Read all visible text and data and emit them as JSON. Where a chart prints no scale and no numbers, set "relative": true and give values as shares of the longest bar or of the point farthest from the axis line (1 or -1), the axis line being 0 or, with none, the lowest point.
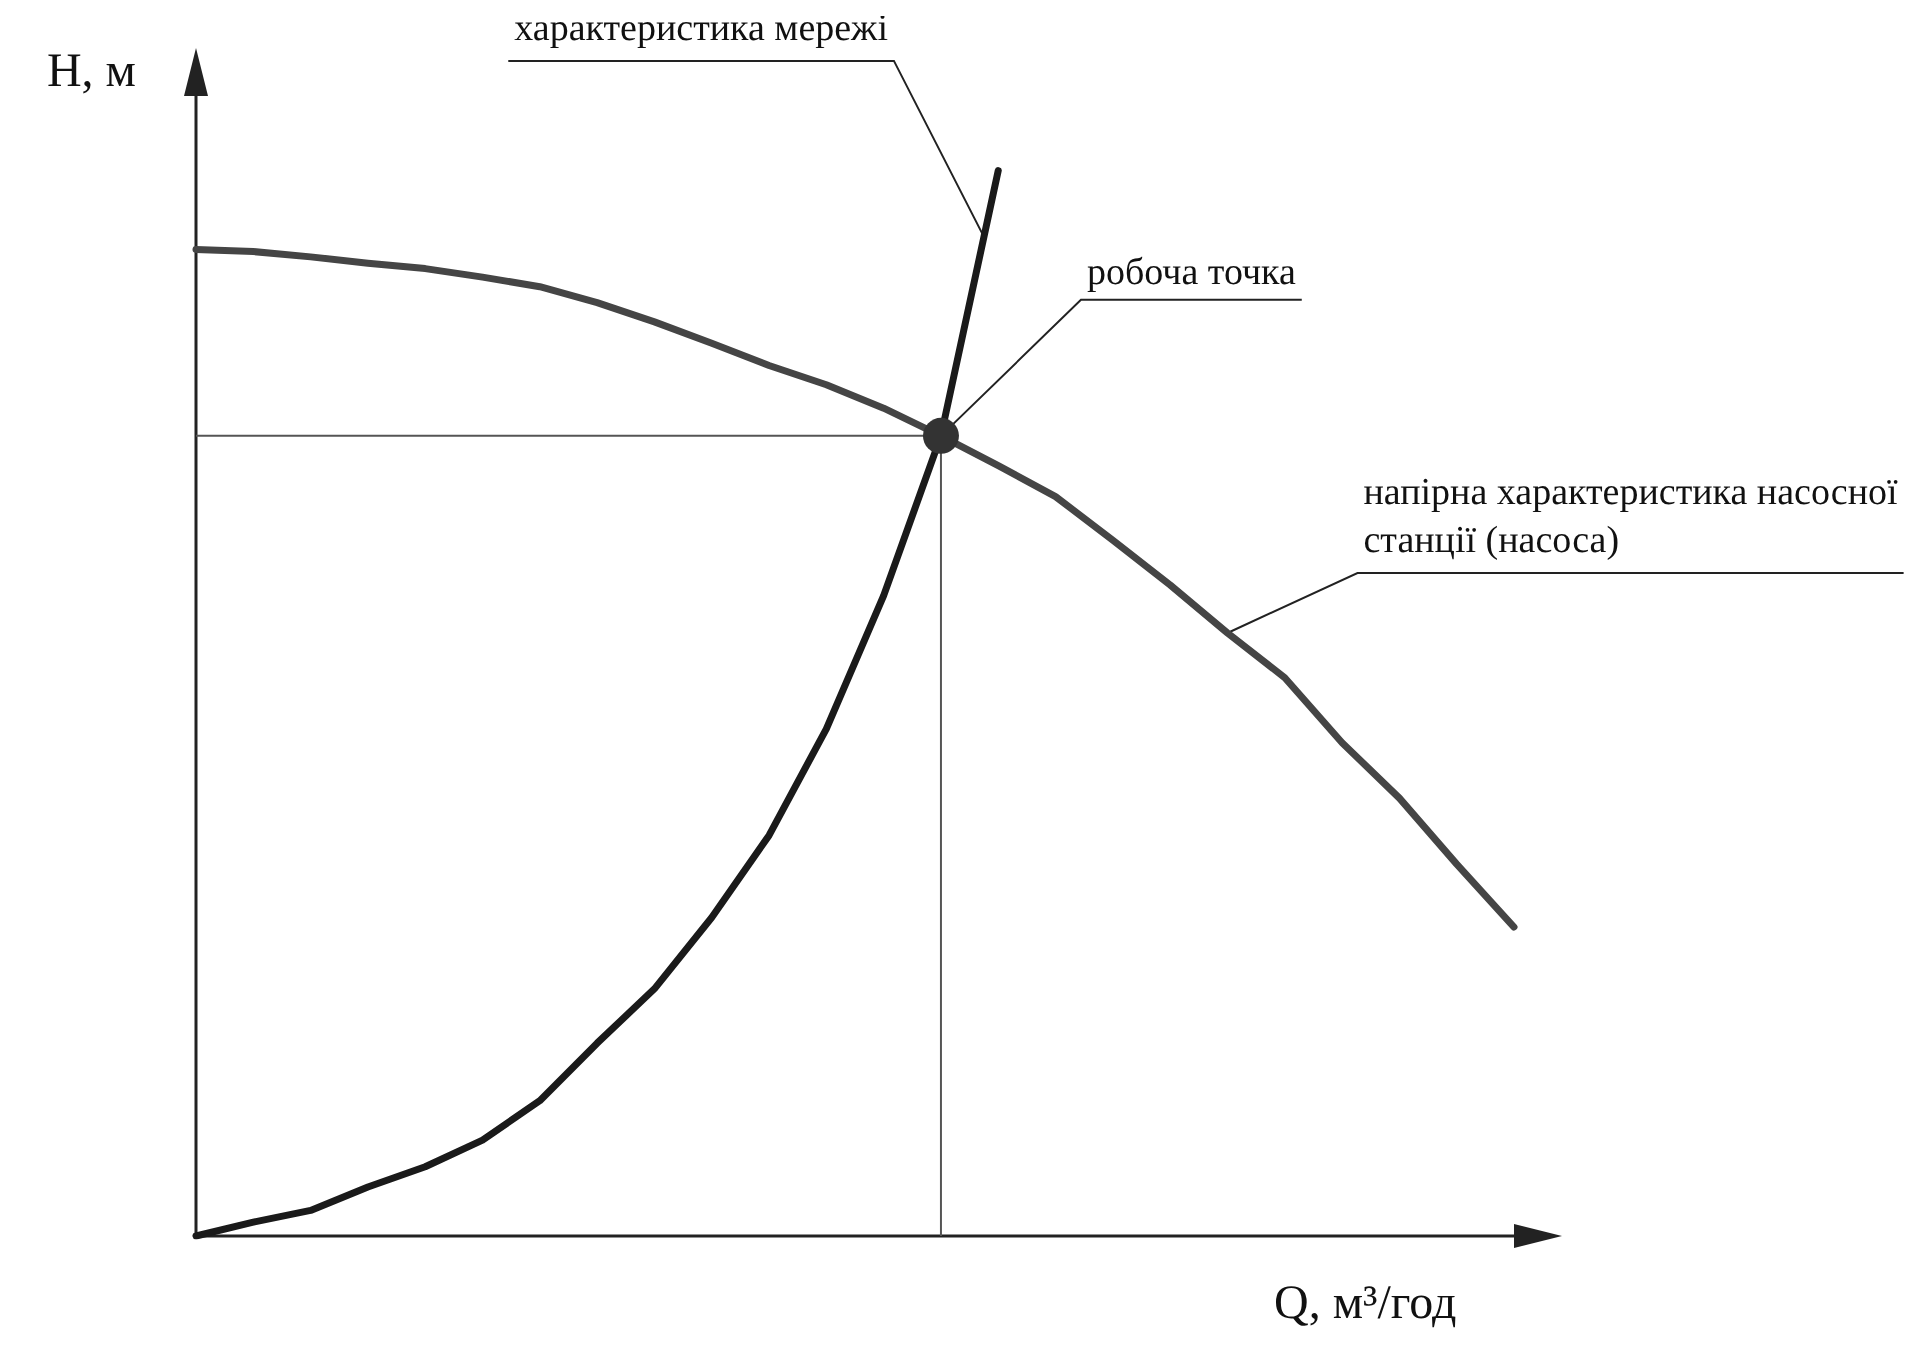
{
  "chart_data": {
    "type": "line",
    "xlabel": "Q, м³/год",
    "ylabel": "H, м",
    "relative": true,
    "legend": false,
    "grid": false,
    "marker": "none",
    "line_style": "solid",
    "categories": [
      null,
      null,
      null,
      null,
      null,
      null,
      null,
      null,
      null,
      null,
      null,
      null,
      null,
      null,
      null,
      null,
      null,
      null,
      null,
      null,
      null,
      null,
      null,
      null
    ],
    "series": [
      {
        "name": "характеристика мережі",
        "color": "#1a1a1a",
        "values": [
          0,
          0.013,
          0.024,
          0.046,
          0.065,
          0.09,
          0.127,
          0.181,
          0.232,
          0.299,
          0.376,
          0.476,
          0.601,
          0.751,
          1,
          null,
          null,
          null,
          null,
          null,
          null,
          null,
          null,
          null
        ]
      },
      {
        "name": "напірна характеристика насосної станції (насоса)",
        "color": "#454545",
        "values": [
          0.926,
          0.924,
          0.919,
          0.913,
          0.908,
          0.9,
          0.891,
          0.876,
          0.858,
          0.838,
          0.817,
          0.799,
          0.777,
          0.751,
          0.723,
          0.694,
          0.653,
          0.611,
          0.566,
          0.524,
          0.463,
          0.411,
          0.349,
          0.29
        ]
      }
    ],
    "ref_lines": [
      {
        "axis": "y",
        "value": 0.751,
        "color": "#555555"
      }
    ],
    "annotations": [
      "робоча точка"
    ]
  }
}
